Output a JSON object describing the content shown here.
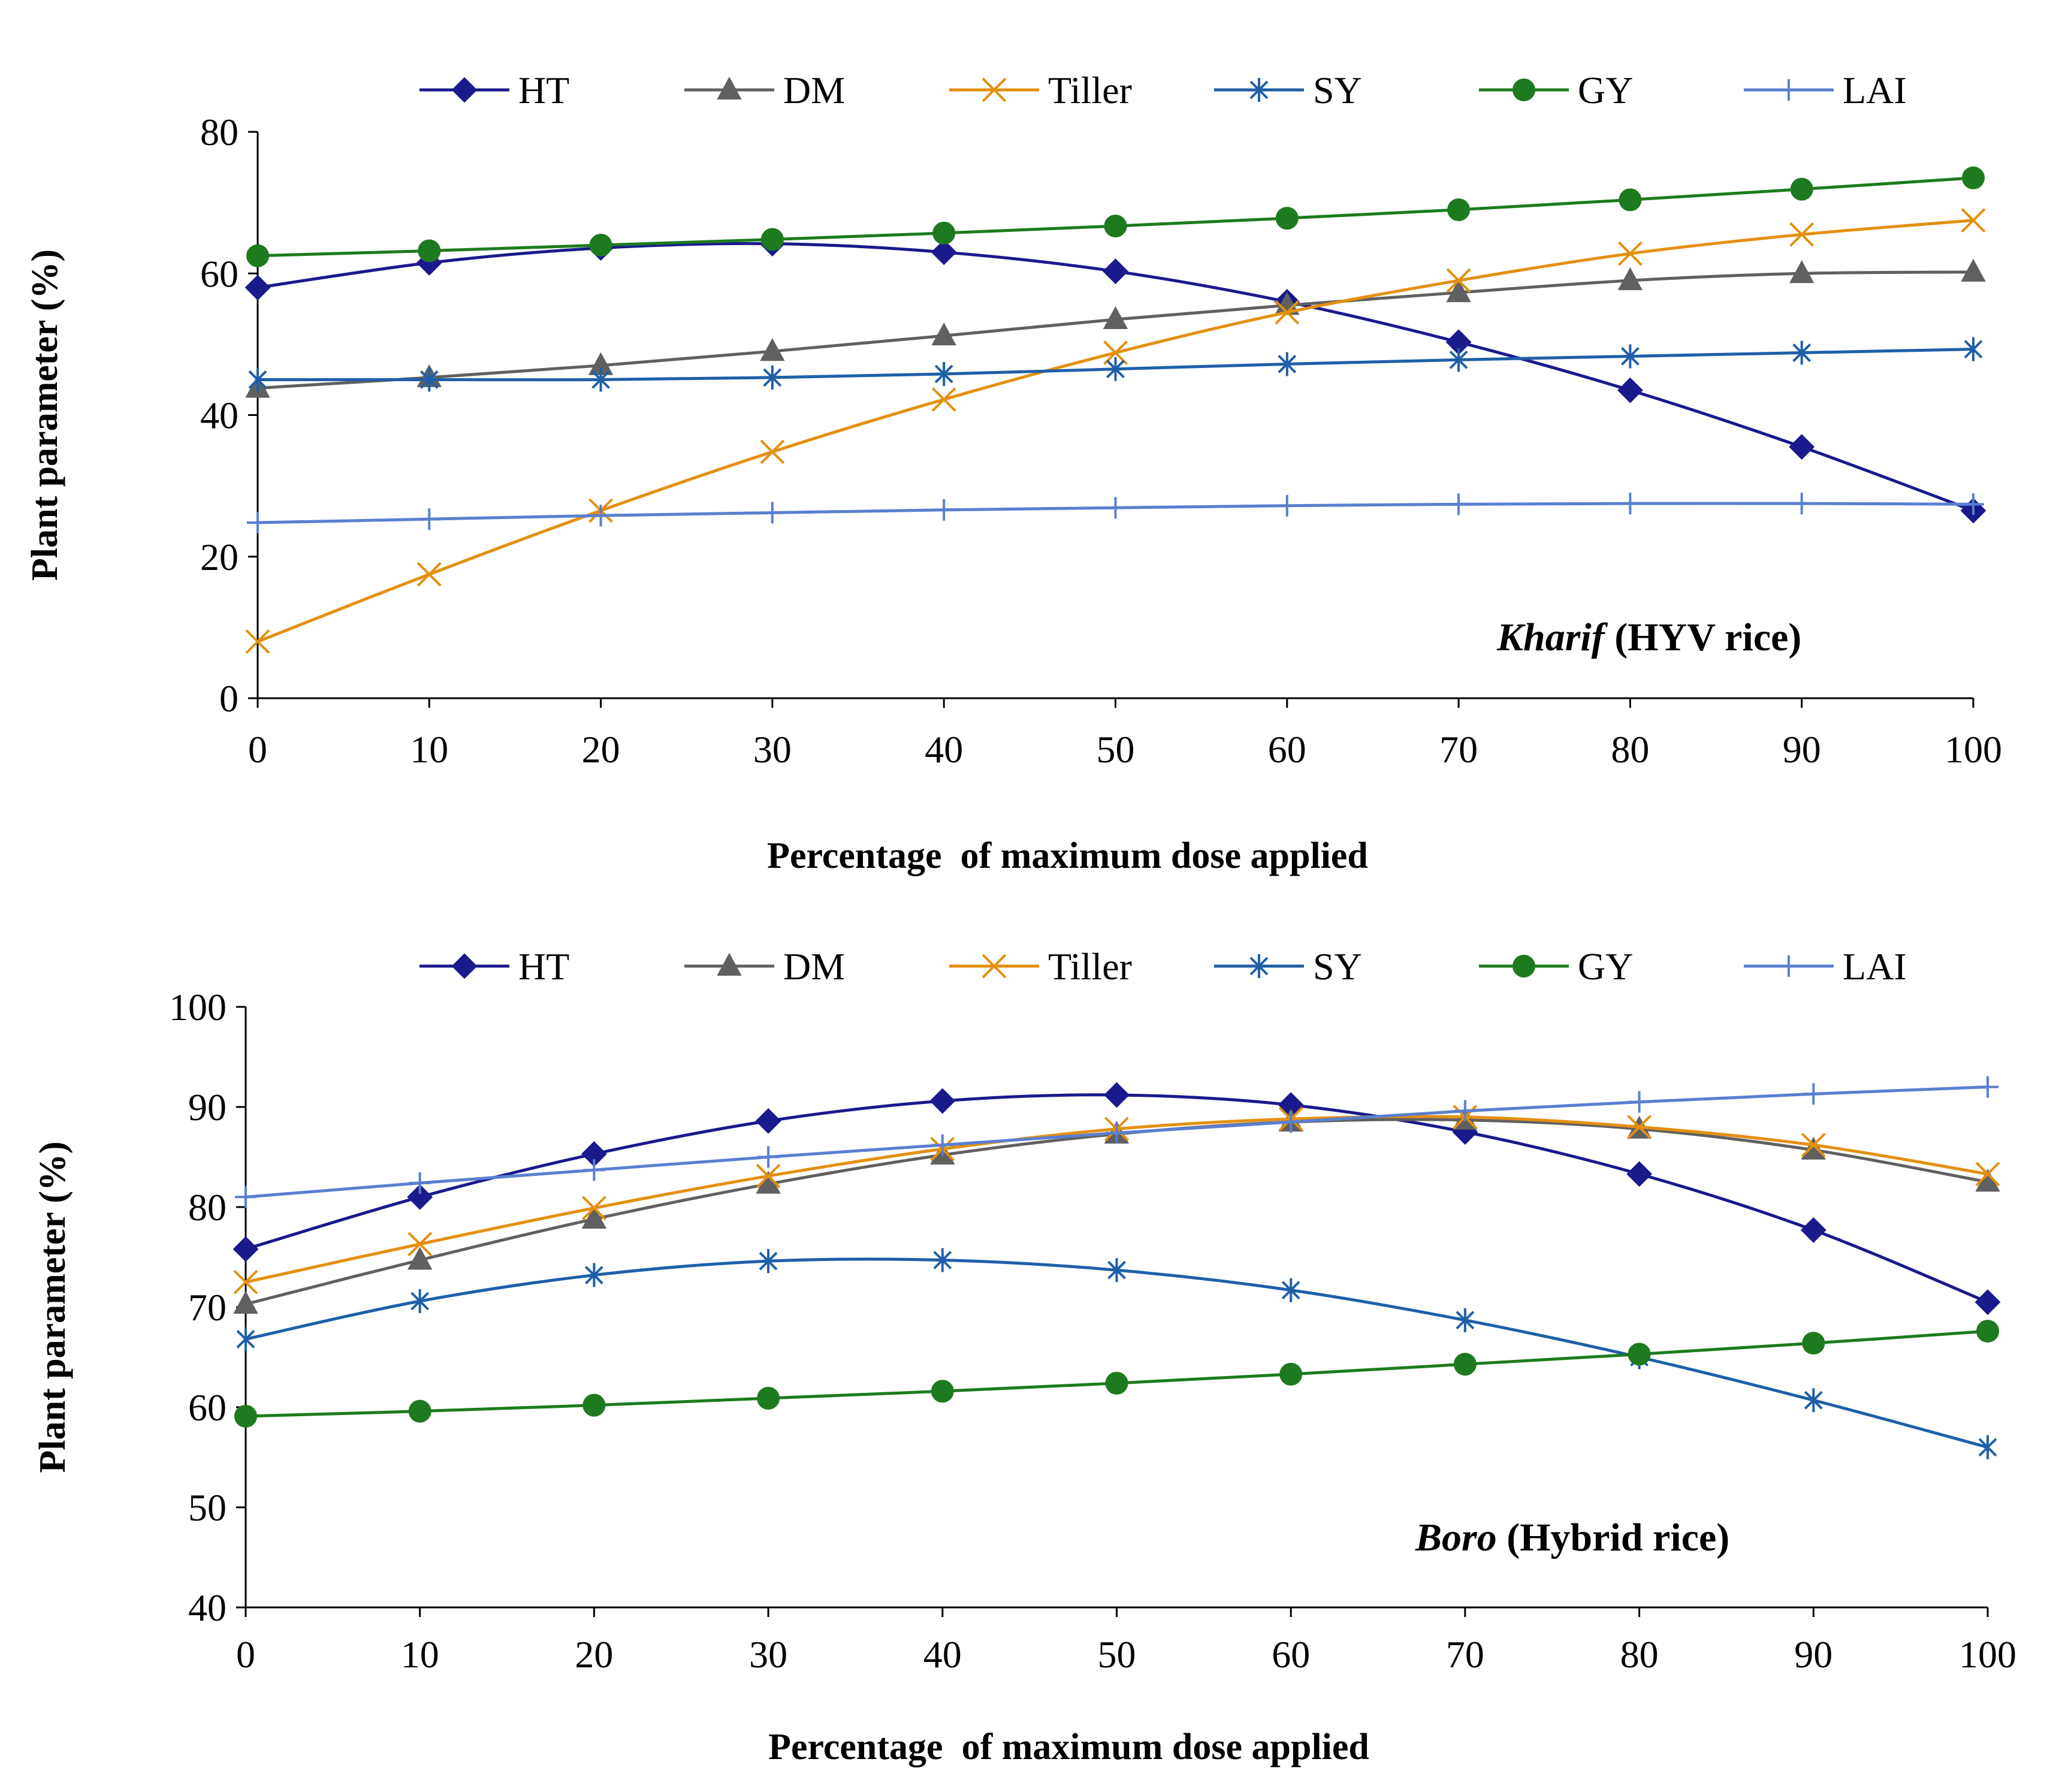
{
  "chart_data": [
    {
      "type": "line",
      "title": "",
      "annotation_italic": "Kharif",
      "annotation_rest": " (HYV rice)",
      "xlabel": "Percentage  of maximum dose applied",
      "ylabel": "Plant parameter (%)",
      "x": [
        0,
        10,
        20,
        30,
        40,
        50,
        60,
        70,
        80,
        90,
        100
      ],
      "x_tick_labels": [
        "0",
        "10",
        "20",
        "30",
        "40",
        "50",
        "60",
        "70",
        "80",
        "90",
        "100"
      ],
      "y_tick_values": [
        0,
        20,
        40,
        60,
        80
      ],
      "y_tick_labels": [
        "0",
        "20",
        "40",
        "60",
        "80"
      ],
      "xlim": [
        0,
        100
      ],
      "ylim": [
        0,
        80
      ],
      "grid": false,
      "legend_position": "top",
      "series": [
        {
          "name": "HT",
          "color": "#1a1a8c",
          "marker": "diamond",
          "values": [
            58.0,
            61.5,
            63.6,
            64.2,
            63.0,
            60.3,
            56.0,
            50.3,
            43.5,
            35.5,
            26.5
          ]
        },
        {
          "name": "DM",
          "color": "#606060",
          "marker": "triangle",
          "values": [
            43.8,
            45.3,
            47.0,
            49.0,
            51.2,
            53.5,
            55.5,
            57.3,
            59.0,
            60.0,
            60.2
          ]
        },
        {
          "name": "Tiller",
          "color": "#e3900f",
          "marker": "x",
          "values": [
            8.0,
            17.5,
            26.5,
            34.8,
            42.2,
            48.8,
            54.5,
            59.0,
            62.8,
            65.5,
            67.5
          ]
        },
        {
          "name": "SY",
          "color": "#1f5fa8",
          "marker": "star",
          "values": [
            45.0,
            45.0,
            45.0,
            45.3,
            45.8,
            46.5,
            47.2,
            47.8,
            48.3,
            48.8,
            49.3
          ]
        },
        {
          "name": "GY",
          "color": "#1e7a1e",
          "marker": "circle",
          "values": [
            62.5,
            63.2,
            64.0,
            64.8,
            65.7,
            66.7,
            67.8,
            69.0,
            70.4,
            71.9,
            73.5
          ]
        },
        {
          "name": "LAI",
          "color": "#5b7fcf",
          "marker": "plus",
          "values": [
            24.8,
            25.3,
            25.8,
            26.2,
            26.6,
            26.9,
            27.2,
            27.4,
            27.5,
            27.5,
            27.4
          ]
        }
      ]
    },
    {
      "type": "line",
      "title": "",
      "annotation_italic": "Boro",
      "annotation_rest": " (Hybrid rice)",
      "xlabel": "Percentage  of maximum dose applied",
      "ylabel": "Plant parameter (%)",
      "x": [
        0,
        10,
        20,
        30,
        40,
        50,
        60,
        70,
        80,
        90,
        100
      ],
      "x_tick_labels": [
        "0",
        "10",
        "20",
        "30",
        "40",
        "50",
        "60",
        "70",
        "80",
        "90",
        "100"
      ],
      "y_tick_values": [
        40,
        50,
        60,
        70,
        80,
        90,
        100
      ],
      "y_tick_labels": [
        "40",
        "50",
        "60",
        "70",
        "80",
        "90",
        "100"
      ],
      "xlim": [
        0,
        100
      ],
      "ylim": [
        40,
        100
      ],
      "grid": false,
      "legend_position": "top",
      "series": [
        {
          "name": "HT",
          "color": "#1a1a8c",
          "marker": "diamond",
          "values": [
            75.8,
            81.0,
            85.3,
            88.6,
            90.6,
            91.2,
            90.2,
            87.5,
            83.3,
            77.7,
            70.5
          ]
        },
        {
          "name": "DM",
          "color": "#606060",
          "marker": "triangle",
          "values": [
            70.3,
            74.7,
            78.8,
            82.3,
            85.2,
            87.3,
            88.5,
            88.7,
            87.8,
            85.7,
            82.5
          ]
        },
        {
          "name": "Tiller",
          "color": "#e3900f",
          "marker": "x",
          "values": [
            72.5,
            76.3,
            79.9,
            83.1,
            85.8,
            87.8,
            88.8,
            89.0,
            88.0,
            86.2,
            83.3
          ]
        },
        {
          "name": "SY",
          "color": "#1f5fa8",
          "marker": "star",
          "values": [
            66.8,
            70.6,
            73.2,
            74.6,
            74.7,
            73.7,
            71.7,
            68.7,
            65.0,
            60.7,
            56.0
          ]
        },
        {
          "name": "GY",
          "color": "#1e7a1e",
          "marker": "circle",
          "values": [
            59.1,
            59.6,
            60.2,
            60.9,
            61.6,
            62.4,
            63.3,
            64.3,
            65.3,
            66.4,
            67.6
          ]
        },
        {
          "name": "LAI",
          "color": "#5b7fcf",
          "marker": "plus",
          "values": [
            81.0,
            82.4,
            83.7,
            85.0,
            86.2,
            87.4,
            88.5,
            89.6,
            90.5,
            91.3,
            92.0
          ]
        }
      ]
    }
  ]
}
